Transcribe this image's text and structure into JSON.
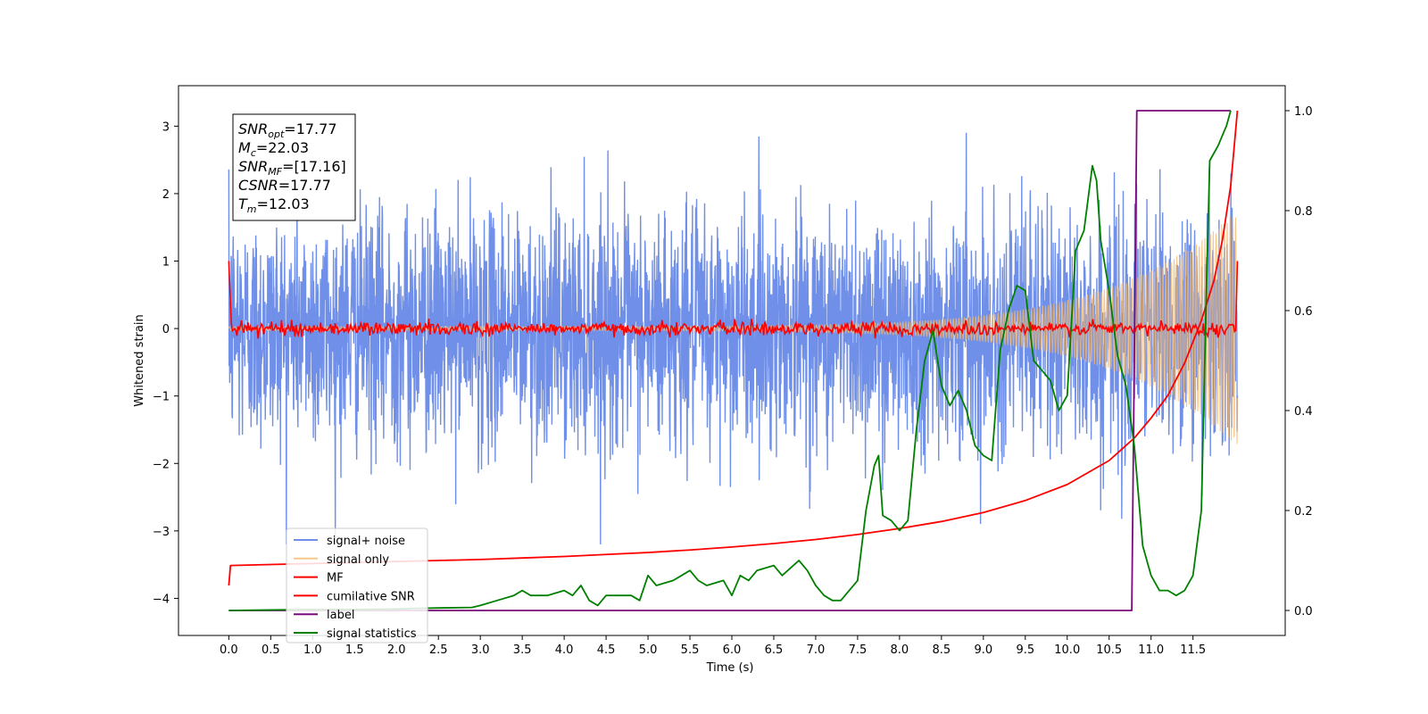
{
  "chart_data": {
    "type": "line",
    "title": "",
    "xlabel": "Time (s)",
    "ylabel": "Whitened strain",
    "y2label": "",
    "xlim": [
      -0.6,
      12.6
    ],
    "ylim": [
      -4.55,
      3.6
    ],
    "y2lim": [
      -0.05,
      1.05
    ],
    "xticks": [
      0.0,
      0.5,
      1.0,
      1.5,
      2.0,
      2.5,
      3.0,
      3.5,
      4.0,
      4.5,
      5.0,
      5.5,
      6.0,
      6.5,
      7.0,
      7.5,
      8.0,
      8.5,
      9.0,
      9.5,
      10.0,
      10.5,
      11.0,
      11.5
    ],
    "xtick_labels": [
      "0.0",
      "0.5",
      "1.0",
      "1.5",
      "2.0",
      "2.5",
      "3.0",
      "3.5",
      "4.0",
      "4.5",
      "5.0",
      "5.5",
      "6.0",
      "6.5",
      "7.0",
      "7.5",
      "8.0",
      "8.5",
      "9.0",
      "9.5",
      "10.0",
      "10.5",
      "11.0",
      "11.5"
    ],
    "yticks": [
      -4,
      -3,
      -2,
      -1,
      0,
      1,
      2,
      3
    ],
    "ytick_labels": [
      "−4",
      "−3",
      "−2",
      "−1",
      "0",
      "1",
      "2",
      "3"
    ],
    "y2ticks": [
      0.0,
      0.2,
      0.4,
      0.6,
      0.8,
      1.0
    ],
    "y2tick_labels": [
      "0.0",
      "0.2",
      "0.4",
      "0.6",
      "0.8",
      "1.0"
    ],
    "grid": false,
    "legend_position": "lower-left",
    "annotation": [
      {
        "name": "snr-opt",
        "base": "SNR",
        "sub": "opt",
        "value": "=17.77"
      },
      {
        "name": "chirp-mass",
        "base": "M",
        "sub": "c",
        "value": "=22.03"
      },
      {
        "name": "snr-mf",
        "base": "SNR",
        "sub": "MF",
        "value": "=[17.16]"
      },
      {
        "name": "csnr",
        "base": "CSNR",
        "sub": "",
        "value": "=17.77"
      },
      {
        "name": "merger-time",
        "base": "T",
        "sub": "m",
        "value": "=12.03"
      }
    ],
    "series": [
      {
        "name": "signal+ noise",
        "axis": "left",
        "color": "#6f8fe8",
        "kind": "noise",
        "t_end": 12.03,
        "band_sigma": 0.85,
        "envelope_min": 0.55,
        "envelope_max": 1.75
      },
      {
        "name": "signal only",
        "axis": "left",
        "color": "#f5b86b",
        "kind": "chirp",
        "t_end": 12.03,
        "amp_start": 0.03,
        "amp_end": 1.75
      },
      {
        "name": "MF",
        "axis": "left",
        "color": "#ff0000",
        "kind": "mf",
        "t_start": 0.0,
        "t_end": 12.03,
        "start_value": 1.0,
        "end_value": 1.0,
        "jitter": 0.05
      },
      {
        "name": "cumilative SNR",
        "axis": "right",
        "color": "#ff0000",
        "x": [
          0.0,
          0.02,
          0.5,
          1.0,
          1.5,
          2.0,
          2.5,
          3.0,
          3.5,
          4.0,
          4.5,
          5.0,
          5.5,
          6.0,
          6.5,
          7.0,
          7.5,
          8.0,
          8.5,
          9.0,
          9.5,
          10.0,
          10.5,
          10.8,
          11.0,
          11.2,
          11.4,
          11.6,
          11.75,
          11.85,
          11.95,
          12.03
        ],
        "y": [
          0.05,
          0.09,
          0.092,
          0.094,
          0.096,
          0.098,
          0.1,
          0.102,
          0.105,
          0.108,
          0.112,
          0.116,
          0.121,
          0.127,
          0.134,
          0.142,
          0.152,
          0.164,
          0.178,
          0.196,
          0.22,
          0.252,
          0.3,
          0.345,
          0.385,
          0.43,
          0.495,
          0.58,
          0.66,
          0.74,
          0.85,
          1.0
        ]
      },
      {
        "name": "label",
        "axis": "right",
        "color": "#7b0a7b",
        "x": [
          0.0,
          10.77,
          10.83,
          11.95
        ],
        "y": [
          0.0,
          0.0,
          1.0,
          1.0
        ]
      },
      {
        "name": "signal statistics",
        "axis": "right",
        "color": "#008000",
        "x": [
          0.0,
          0.5,
          1.0,
          1.5,
          2.0,
          2.2,
          2.5,
          2.9,
          3.0,
          3.2,
          3.4,
          3.5,
          3.6,
          3.8,
          4.0,
          4.1,
          4.2,
          4.3,
          4.4,
          4.5,
          4.7,
          4.8,
          4.9,
          5.0,
          5.1,
          5.3,
          5.5,
          5.6,
          5.7,
          5.9,
          6.0,
          6.1,
          6.2,
          6.3,
          6.5,
          6.6,
          6.8,
          6.9,
          7.0,
          7.1,
          7.2,
          7.3,
          7.4,
          7.5,
          7.6,
          7.7,
          7.75,
          7.8,
          7.9,
          8.0,
          8.1,
          8.2,
          8.3,
          8.4,
          8.5,
          8.6,
          8.7,
          8.8,
          8.9,
          9.0,
          9.1,
          9.2,
          9.3,
          9.4,
          9.5,
          9.6,
          9.7,
          9.8,
          9.9,
          10.0,
          10.1,
          10.2,
          10.3,
          10.35,
          10.4,
          10.5,
          10.6,
          10.7,
          10.8,
          10.9,
          11.0,
          11.1,
          11.2,
          11.3,
          11.4,
          11.5,
          11.6,
          11.65,
          11.7,
          11.8,
          11.9,
          11.95
        ],
        "y": [
          0.0,
          0.001,
          0.002,
          0.002,
          0.003,
          0.004,
          0.005,
          0.006,
          0.01,
          0.02,
          0.03,
          0.04,
          0.03,
          0.03,
          0.04,
          0.03,
          0.05,
          0.02,
          0.01,
          0.03,
          0.03,
          0.03,
          0.02,
          0.07,
          0.05,
          0.06,
          0.08,
          0.06,
          0.05,
          0.06,
          0.03,
          0.07,
          0.06,
          0.08,
          0.09,
          0.07,
          0.1,
          0.08,
          0.05,
          0.03,
          0.02,
          0.02,
          0.04,
          0.06,
          0.2,
          0.29,
          0.31,
          0.19,
          0.18,
          0.16,
          0.18,
          0.36,
          0.5,
          0.56,
          0.45,
          0.41,
          0.44,
          0.4,
          0.33,
          0.31,
          0.3,
          0.52,
          0.6,
          0.65,
          0.64,
          0.5,
          0.48,
          0.46,
          0.4,
          0.43,
          0.72,
          0.76,
          0.89,
          0.86,
          0.74,
          0.64,
          0.51,
          0.45,
          0.33,
          0.13,
          0.07,
          0.04,
          0.04,
          0.03,
          0.04,
          0.07,
          0.2,
          0.57,
          0.9,
          0.93,
          0.97,
          1.0
        ]
      }
    ]
  }
}
